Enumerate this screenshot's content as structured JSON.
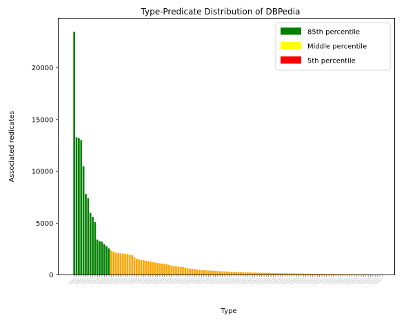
{
  "chart_data": {
    "type": "bar",
    "title": "Type-Predicate Distribution of DBPedia",
    "xlabel": "Type",
    "ylabel": "Associated redicates",
    "ylim": [
      0,
      24800
    ],
    "yticks": [
      0,
      5000,
      10000,
      15000,
      20000
    ],
    "grid": false,
    "legend_position": "top-right",
    "legend": [
      {
        "label": "85th percentile",
        "color": "#008000"
      },
      {
        "label": "Middle percentile",
        "color": "#ffff00"
      },
      {
        "label": "5th percentile",
        "color": "#ff0000"
      }
    ],
    "bar_colors": {
      "top": "#008000",
      "middle": "#ffa500",
      "bottom": "#ff0000"
    },
    "series": [
      {
        "group": "top",
        "values": [
          23500,
          13300,
          13200,
          13000,
          10500,
          7800,
          7400,
          6000,
          5600,
          5100,
          3400,
          3250,
          3200,
          2950,
          2750,
          2550
        ]
      },
      {
        "group": "middle",
        "values": [
          2350,
          2250,
          2150,
          2100,
          2080,
          2050,
          2020,
          2000,
          1950,
          1900,
          1700,
          1560,
          1480,
          1430,
          1400,
          1360,
          1320,
          1280,
          1220,
          1190,
          1160,
          1120,
          1080,
          1060,
          1020,
          960,
          900,
          860,
          830,
          800,
          780,
          760,
          700,
          640,
          600,
          575,
          550,
          525,
          500,
          480,
          460,
          440,
          420,
          405,
          390,
          375,
          360,
          350,
          340,
          330,
          320,
          310,
          300,
          292,
          285,
          278,
          270,
          262,
          255,
          248,
          240,
          232,
          225,
          218,
          210,
          204,
          198,
          192,
          186,
          180,
          175,
          170,
          165,
          160,
          155,
          150,
          146,
          142,
          138,
          134,
          130,
          126,
          122,
          118,
          114,
          110,
          106,
          102,
          98,
          95,
          92,
          89,
          86,
          83,
          80,
          78,
          76,
          74,
          72,
          70,
          68,
          66,
          64,
          62,
          60,
          58,
          56,
          54,
          52,
          50
        ]
      },
      {
        "group": "bottom",
        "values": [
          45,
          40,
          36,
          32,
          28,
          24,
          20,
          15
        ]
      }
    ]
  }
}
